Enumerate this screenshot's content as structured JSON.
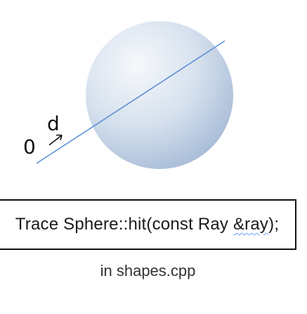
{
  "diagram": {
    "origin_label": "0",
    "direction_label": "d"
  },
  "trace": {
    "prefix": "Trace Sphere::hit(const Ray ",
    "arg": "&ray",
    "suffix": ");"
  },
  "caption": {
    "text": "in shapes.cpp"
  },
  "colors": {
    "sphere_highlight": "#f4f7fb",
    "sphere_mid": "#cfdcec",
    "sphere_edge": "#9fb6d4",
    "ray_line": "#5b8fd6",
    "outline": "#111111"
  }
}
